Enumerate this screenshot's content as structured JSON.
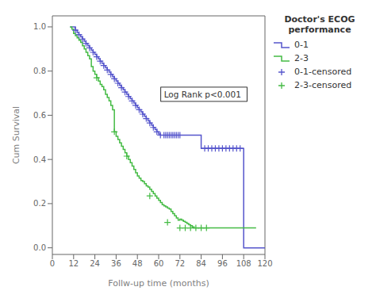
{
  "chart_data": {
    "type": "line",
    "xlabel": "Follw-up time (months)",
    "ylabel": "Cum Survival",
    "xlim": [
      0,
      120
    ],
    "ylim": [
      -0.03,
      1.05
    ],
    "xticks": [
      0,
      12,
      24,
      36,
      48,
      60,
      72,
      84,
      96,
      108,
      120
    ],
    "yticks": [
      {
        "value": 0.0,
        "label": "0.0"
      },
      0.2,
      0.4,
      0.6,
      0.8,
      {
        "value": 1.0,
        "label": "1.0"
      }
    ],
    "grid": false,
    "legend": "right",
    "legend_title": "Doctor's ECOG\nperformance",
    "annotations": [
      {
        "text": "Log Rank p<0.001",
        "x": 63,
        "y": 0.695
      }
    ],
    "series": [
      {
        "name": "0-1",
        "type": "line",
        "line_style": "step",
        "color": "#5555cc",
        "x": [
          10,
          12,
          13,
          14,
          15,
          16,
          17,
          18,
          19,
          20,
          21,
          22,
          23,
          24,
          25,
          26,
          27,
          28,
          29,
          30,
          31,
          32,
          33,
          34,
          35,
          36,
          37,
          38,
          39,
          40,
          41,
          42,
          43,
          44,
          45,
          46,
          47,
          48,
          49,
          50,
          51,
          52,
          53,
          54,
          55,
          56,
          57,
          58,
          59,
          60,
          61,
          62,
          63,
          64,
          65,
          66,
          67,
          68,
          69,
          70,
          71,
          72,
          73,
          84,
          85,
          86,
          87,
          88,
          89,
          90,
          91,
          92,
          93,
          94,
          95,
          96,
          97,
          98,
          99,
          100,
          101,
          102,
          103,
          104,
          105,
          106,
          107,
          108,
          120
        ],
        "values": [
          1.0,
          1.0,
          0.985,
          0.975,
          0.965,
          0.955,
          0.945,
          0.935,
          0.925,
          0.915,
          0.905,
          0.895,
          0.885,
          0.875,
          0.865,
          0.855,
          0.845,
          0.835,
          0.825,
          0.815,
          0.805,
          0.795,
          0.785,
          0.775,
          0.765,
          0.755,
          0.745,
          0.735,
          0.725,
          0.715,
          0.705,
          0.695,
          0.685,
          0.675,
          0.665,
          0.655,
          0.645,
          0.635,
          0.625,
          0.615,
          0.605,
          0.595,
          0.585,
          0.575,
          0.565,
          0.555,
          0.545,
          0.535,
          0.525,
          0.515,
          0.51,
          0.51,
          0.51,
          0.51,
          0.51,
          0.51,
          0.51,
          0.51,
          0.51,
          0.51,
          0.51,
          0.51,
          0.51,
          0.45,
          0.45,
          0.45,
          0.45,
          0.45,
          0.45,
          0.45,
          0.45,
          0.45,
          0.45,
          0.45,
          0.45,
          0.45,
          0.45,
          0.45,
          0.45,
          0.45,
          0.45,
          0.45,
          0.45,
          0.45,
          0.45,
          0.45,
          0.45,
          0.0,
          0.0
        ]
      },
      {
        "name": "2-3",
        "type": "line",
        "line_style": "step",
        "color": "#44bb44",
        "x": [
          10,
          11,
          12,
          13,
          14,
          15,
          16,
          17,
          18,
          19,
          20,
          21,
          22,
          23,
          24,
          25,
          26,
          27,
          28,
          29,
          30,
          31,
          32,
          33,
          34,
          35,
          36,
          37,
          38,
          39,
          40,
          41,
          42,
          43,
          44,
          45,
          46,
          47,
          48,
          49,
          50,
          51,
          52,
          53,
          54,
          55,
          56,
          57,
          58,
          59,
          60,
          61,
          62,
          63,
          64,
          65,
          66,
          67,
          68,
          69,
          70,
          71,
          72,
          73,
          74,
          75,
          76,
          77,
          78,
          79,
          80,
          81,
          82,
          83,
          84,
          85,
          86,
          87,
          88,
          89,
          90,
          91,
          92,
          93,
          94,
          95,
          96,
          97,
          98,
          99,
          100,
          101,
          102,
          103,
          104,
          105,
          106,
          107,
          108,
          115
        ],
        "values": [
          1.0,
          0.99,
          0.97,
          0.96,
          0.95,
          0.94,
          0.93,
          0.915,
          0.9,
          0.885,
          0.87,
          0.855,
          0.82,
          0.8,
          0.785,
          0.77,
          0.755,
          0.74,
          0.73,
          0.715,
          0.695,
          0.68,
          0.665,
          0.645,
          0.625,
          0.525,
          0.505,
          0.49,
          0.475,
          0.46,
          0.445,
          0.43,
          0.415,
          0.4,
          0.385,
          0.37,
          0.355,
          0.34,
          0.325,
          0.315,
          0.305,
          0.3,
          0.29,
          0.28,
          0.275,
          0.265,
          0.255,
          0.245,
          0.235,
          0.225,
          0.215,
          0.205,
          0.195,
          0.19,
          0.185,
          0.18,
          0.175,
          0.165,
          0.155,
          0.145,
          0.135,
          0.125,
          0.13,
          0.125,
          0.12,
          0.115,
          0.11,
          0.105,
          0.1,
          0.095,
          0.09,
          0.09,
          0.09,
          0.09,
          0.09,
          0.09,
          0.09,
          0.09,
          0.09,
          0.09,
          0.09,
          0.09,
          0.09,
          0.09,
          0.09,
          0.09,
          0.09,
          0.09,
          0.09,
          0.09,
          0.09,
          0.09,
          0.09,
          0.09,
          0.09,
          0.09,
          0.09,
          0.09,
          0.09,
          0.09
        ]
      },
      {
        "name": "0-1-censored",
        "type": "scatter",
        "marker": "plus",
        "color": "#5555cc",
        "x": [
          13,
          15,
          17,
          19,
          21,
          23,
          25,
          27,
          29,
          31,
          33,
          35,
          37,
          39,
          41,
          43,
          45,
          47,
          49,
          51,
          53,
          55,
          57,
          59,
          61,
          63,
          65,
          67,
          69,
          71,
          64,
          66,
          68,
          70,
          72,
          86,
          88,
          90,
          92,
          94,
          96,
          98,
          100,
          102,
          104,
          106
        ],
        "values": [
          0.985,
          0.965,
          0.945,
          0.925,
          0.905,
          0.885,
          0.865,
          0.845,
          0.825,
          0.805,
          0.785,
          0.765,
          0.745,
          0.725,
          0.705,
          0.685,
          0.665,
          0.645,
          0.625,
          0.605,
          0.585,
          0.565,
          0.545,
          0.525,
          0.51,
          0.51,
          0.51,
          0.51,
          0.51,
          0.51,
          0.51,
          0.51,
          0.51,
          0.51,
          0.51,
          0.45,
          0.45,
          0.45,
          0.45,
          0.45,
          0.45,
          0.45,
          0.45,
          0.45,
          0.45,
          0.45
        ]
      },
      {
        "name": "2-3-censored",
        "type": "scatter",
        "marker": "plus",
        "color": "#44bb44",
        "x": [
          25,
          35,
          42,
          55,
          65,
          72,
          75,
          78,
          81,
          84,
          87
        ],
        "values": [
          0.77,
          0.525,
          0.415,
          0.235,
          0.115,
          0.09,
          0.09,
          0.09,
          0.09,
          0.09,
          0.09
        ]
      }
    ]
  }
}
